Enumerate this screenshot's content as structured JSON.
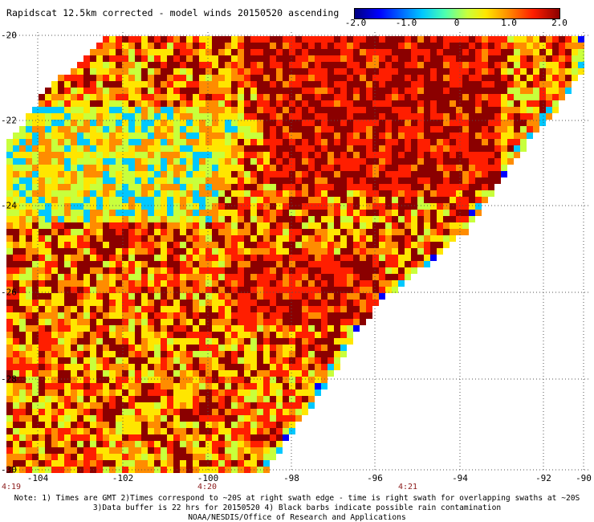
{
  "title": "Rapidscat 12.5km corrected - model winds 20150520 ascending",
  "colorbar": {
    "ticks": [
      "-2.0",
      "-1.0",
      "0",
      "1.0",
      "2.0"
    ],
    "tick_values": [
      -2.0,
      -1.0,
      0,
      1.0,
      2.0
    ],
    "range": [
      -2.0,
      2.0
    ],
    "colors": [
      "#00007f",
      "#0000ff",
      "#00c8ff",
      "#c8ff3c",
      "#ffe600",
      "#ff8c00",
      "#ff1e00",
      "#8b0000"
    ]
  },
  "map": {
    "lat_ticks": [
      "-20",
      "-22",
      "-24",
      "-26",
      "-28",
      "-30"
    ],
    "lon_ticks": [
      "-104",
      "-102",
      "-100",
      "-98",
      "-96",
      "-94",
      "-92",
      "-90"
    ],
    "lat_range": [
      -30,
      -20
    ],
    "lon_range": [
      -105.5,
      -90
    ],
    "grid": true,
    "swath_description": "Diagonal ascending swath of wind differences, dark red maxima in north-east and central bands, cyan/green minima in the north-west"
  },
  "time_labels": [
    "4:19",
    "4:20",
    "4:21"
  ],
  "notes": [
    "Note: 1) Times are GMT 2)Times correspond to ~20S at right swath edge - time is right swath for overlapping swaths at ~20S",
    "3)Data buffer is 22 hrs for 20150520 4) Black barbs indicate possible rain contamination",
    "NOAA/NESDIS/Office of Research and Applications"
  ]
}
